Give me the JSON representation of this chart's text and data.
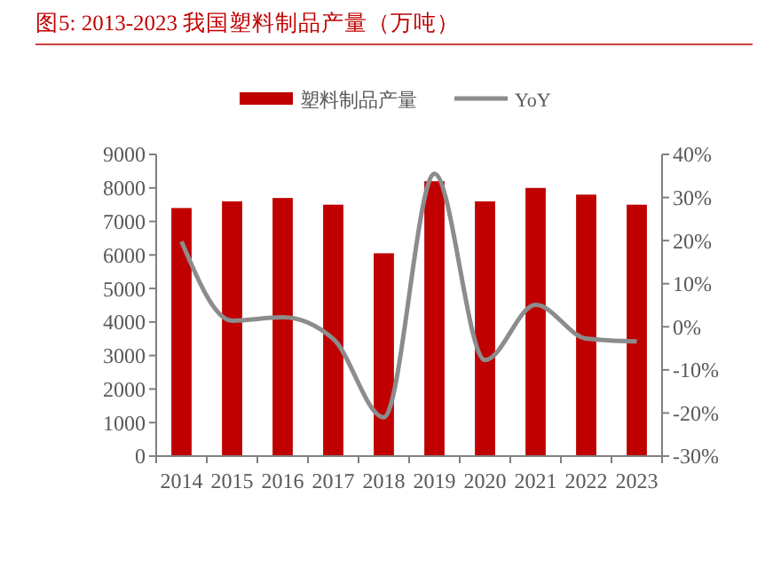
{
  "chart_data": {
    "type": "bar",
    "title": "图5:  2013-2023 我国塑料制品产量（万吨）",
    "categories": [
      "2014",
      "2015",
      "2016",
      "2017",
      "2018",
      "2019",
      "2020",
      "2021",
      "2022",
      "2023"
    ],
    "series": [
      {
        "name": "塑料制品产量",
        "color": "#c00000",
        "values": [
          7400,
          7600,
          7700,
          7500,
          6050,
          8200,
          7600,
          8000,
          7800,
          7500
        ]
      },
      {
        "name": "YoY",
        "type": "line",
        "axis": "y2",
        "color": "#8c8c8c",
        "values": [
          19.8,
          1.4,
          2.2,
          -2.8,
          -21,
          35.5,
          -7.7,
          5.1,
          -2.7,
          -3.4
        ]
      }
    ],
    "ylim": [
      0,
      9000
    ],
    "yticks": [
      0,
      1000,
      2000,
      3000,
      4000,
      5000,
      6000,
      7000,
      8000,
      9000
    ],
    "y2lim": [
      -30,
      40
    ],
    "y2ticks": [
      {
        "value": -30,
        "label": "-30%"
      },
      {
        "value": -20,
        "label": "-20%"
      },
      {
        "value": -10,
        "label": "-10%"
      },
      {
        "value": 0,
        "label": "0%"
      },
      {
        "value": 10,
        "label": "10%"
      },
      {
        "value": 20,
        "label": "20%"
      },
      {
        "value": 30,
        "label": "30%"
      },
      {
        "value": 40,
        "label": "40%"
      }
    ],
    "legend": "top",
    "marker": "none",
    "line_style": "solid",
    "grid": false
  }
}
